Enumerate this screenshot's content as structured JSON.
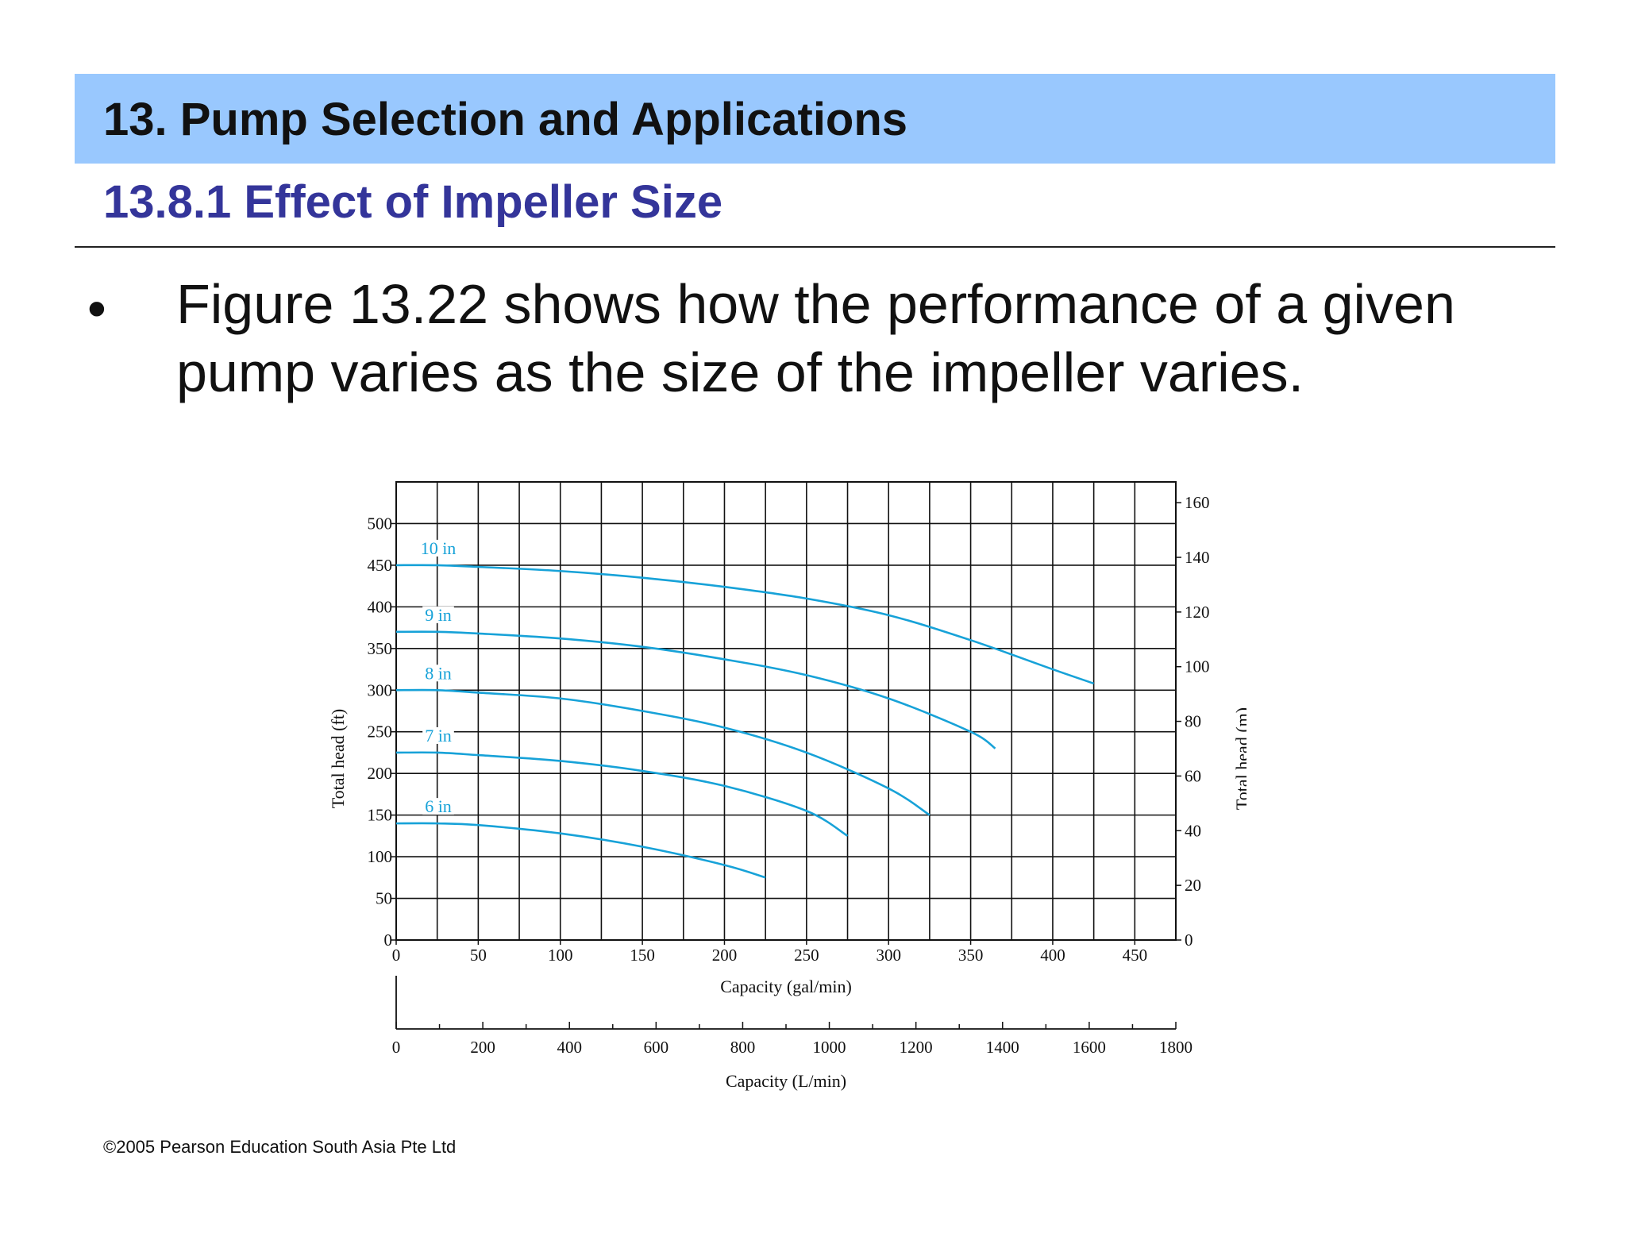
{
  "header": {
    "title": "13. Pump Selection and Applications",
    "subtitle": "13.8.1 Effect of Impeller Size"
  },
  "body": {
    "bullet": "•",
    "text": "Figure 13.22 shows how the performance of a given pump varies as the size of the impeller varies."
  },
  "footer": {
    "copyright": "©2005 Pearson Education South Asia Pte Ltd"
  },
  "colors": {
    "title_band": "#99c8fe",
    "subtitle_text": "#34359a",
    "curve": "#17a2d8",
    "grid": "#111111"
  },
  "chart_data": {
    "type": "line",
    "xlabel": "Capacity (gal/min)",
    "xlabel2": "Capacity (L/min)",
    "ylabel": "Total head (ft)",
    "ylabel2": "Total head (m)",
    "xlim": [
      0,
      475
    ],
    "ylim": [
      0,
      550
    ],
    "xlim2": [
      0,
      1800
    ],
    "ylim2": [
      0,
      167.6
    ],
    "grid": true,
    "x_ticks": [
      0,
      50,
      100,
      150,
      200,
      250,
      300,
      350,
      400,
      450
    ],
    "y_ticks": [
      0,
      50,
      100,
      150,
      200,
      250,
      300,
      350,
      400,
      450,
      500
    ],
    "x2_ticks": [
      0,
      200,
      400,
      600,
      800,
      1000,
      1200,
      1400,
      1600,
      1800
    ],
    "y2_ticks": [
      0,
      20,
      40,
      60,
      80,
      100,
      120,
      140,
      160
    ],
    "series": [
      {
        "name": "10 in",
        "x": [
          0,
          25,
          50,
          100,
          150,
          200,
          250,
          300,
          350,
          400,
          425
        ],
        "y": [
          450,
          450,
          448,
          443,
          435,
          424,
          410,
          390,
          360,
          325,
          308
        ]
      },
      {
        "name": "9 in",
        "x": [
          0,
          25,
          50,
          100,
          150,
          200,
          250,
          300,
          350,
          365
        ],
        "y": [
          370,
          370,
          368,
          362,
          352,
          337,
          318,
          290,
          250,
          230
        ]
      },
      {
        "name": "8 in",
        "x": [
          0,
          25,
          50,
          100,
          150,
          200,
          250,
          300,
          325
        ],
        "y": [
          300,
          300,
          297,
          290,
          275,
          255,
          225,
          182,
          150
        ]
      },
      {
        "name": "7 in",
        "x": [
          0,
          25,
          50,
          100,
          150,
          200,
          250,
          275
        ],
        "y": [
          225,
          225,
          222,
          215,
          203,
          185,
          155,
          125
        ]
      },
      {
        "name": "6 in",
        "x": [
          0,
          25,
          50,
          100,
          150,
          200,
          225
        ],
        "y": [
          140,
          140,
          138,
          128,
          112,
          90,
          75
        ]
      }
    ]
  }
}
